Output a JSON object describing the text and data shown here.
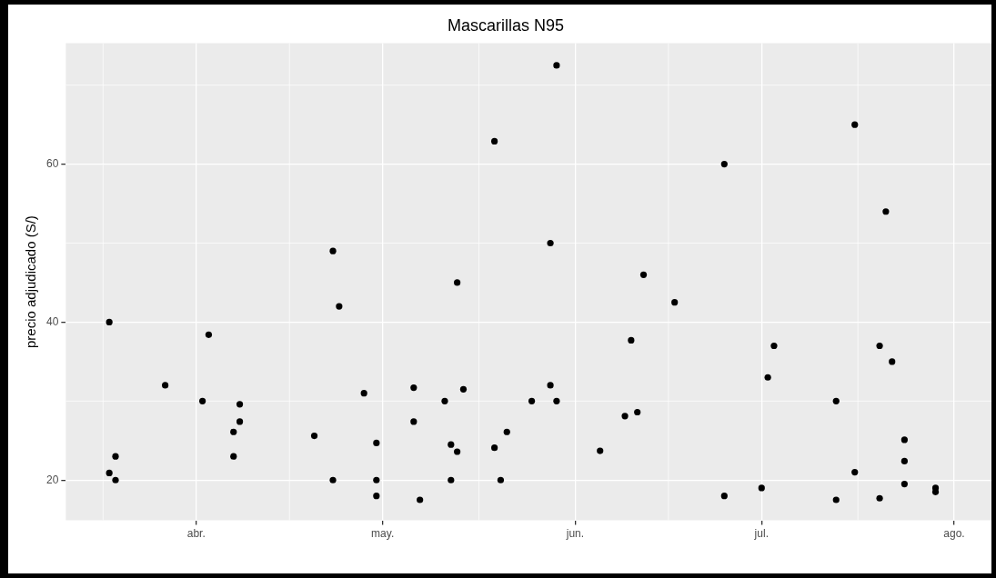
{
  "chart_data": {
    "type": "scatter",
    "title": "Mascarillas N95",
    "ylabel": "precio adjudicado (S/)",
    "x": [
      "--03-18",
      "--03-19",
      "--03-18",
      "--03-19",
      "--03-27",
      "--04-02",
      "--04-03",
      "--04-07",
      "--04-07",
      "--04-08",
      "--04-08",
      "--04-20",
      "--04-23",
      "--04-23",
      "--04-24",
      "--04-28",
      "--04-30",
      "--04-30",
      "--04-30",
      "--05-06",
      "--05-06",
      "--05-07",
      "--05-11",
      "--05-12",
      "--05-12",
      "--05-13",
      "--05-13",
      "--05-14",
      "--05-19",
      "--05-19",
      "--05-20",
      "--05-21",
      "--05-25",
      "--05-28",
      "--05-28",
      "--05-29",
      "--05-29",
      "--06-05",
      "--06-09",
      "--06-10",
      "--06-11",
      "--06-12",
      "--06-17",
      "--06-25",
      "--06-25",
      "--07-01",
      "--07-02",
      "--07-03",
      "--07-13",
      "--07-13",
      "--07-16",
      "--07-16",
      "--07-20",
      "--07-20",
      "--07-21",
      "--07-22",
      "--07-24",
      "--07-24",
      "--07-24",
      "--07-29",
      "--07-29"
    ],
    "series": [
      {
        "color": "#000000",
        "values": [
          40,
          23,
          20.9,
          20,
          32,
          30,
          38.4,
          26.1,
          23,
          29.6,
          27.4,
          25.6,
          49,
          20,
          42,
          31,
          24.7,
          20,
          18,
          31.7,
          27.4,
          17.5,
          30,
          24.5,
          20,
          45,
          23.6,
          31.5,
          62.9,
          24.1,
          20,
          26.1,
          30,
          50,
          32,
          72.5,
          30,
          23.7,
          28.1,
          37.7,
          28.6,
          46,
          42.5,
          60,
          18,
          19,
          33,
          37,
          30,
          17.5,
          65,
          21,
          37,
          17.7,
          54,
          35,
          25.1,
          22.4,
          19.5,
          19,
          18.5
        ]
      }
    ],
    "xlim": [
      "--03-11",
      "--08-07"
    ],
    "xticks": [
      {
        "value": "--04-01",
        "label": "abr."
      },
      {
        "value": "--05-01",
        "label": "may."
      },
      {
        "value": "--06-01",
        "label": "jun."
      },
      {
        "value": "--07-01",
        "label": "jul."
      },
      {
        "value": "--08-01",
        "label": "ago."
      }
    ],
    "ylim": [
      14.9,
      75.3
    ],
    "yticks": [
      20,
      40,
      60
    ],
    "grid": true,
    "legend": false,
    "marker": "circle"
  }
}
